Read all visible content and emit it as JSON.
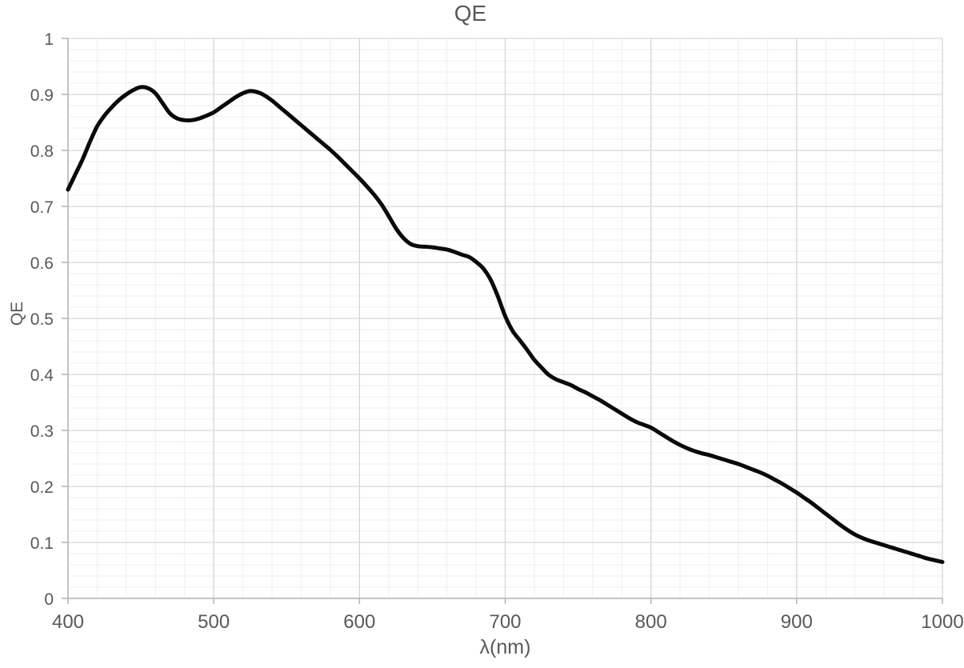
{
  "page": {
    "background": "#ffffff"
  },
  "colors": {
    "background": "#ffffff",
    "text": "#595959",
    "major_grid": "#d6d6d6",
    "minor_grid": "#efefef",
    "axis": "#b3b3b3",
    "line": "#0a0a0a"
  },
  "chart_data": {
    "type": "line",
    "title": "QE",
    "xlabel": "λ(nm)",
    "ylabel": "QE",
    "xlim": [
      400,
      1000
    ],
    "ylim": [
      0,
      1
    ],
    "x_ticks": {
      "values": [
        400,
        500,
        600,
        700,
        800,
        900,
        1000
      ],
      "labels": [
        "400",
        "500",
        "600",
        "700",
        "800",
        "900",
        "1000"
      ]
    },
    "y_ticks": {
      "values": [
        0,
        0.1,
        0.2,
        0.3,
        0.4,
        0.5,
        0.6,
        0.7,
        0.8,
        0.9,
        1
      ],
      "labels": [
        "0",
        "0.1",
        "0.2",
        "0.3",
        "0.4",
        "0.5",
        "0.6",
        "0.7",
        "0.8",
        "0.9",
        "1"
      ]
    },
    "x_minor_step": 20,
    "y_minor_step": 0.02,
    "grid": "major and minor gridlines, light gray, no legend",
    "legend": "none",
    "series": [
      {
        "name": "QE",
        "color": "#0a0a0a",
        "line_width": 5,
        "points": [
          [
            400,
            0.73
          ],
          [
            405,
            0.757
          ],
          [
            410,
            0.784
          ],
          [
            415,
            0.815
          ],
          [
            420,
            0.843
          ],
          [
            425,
            0.862
          ],
          [
            430,
            0.877
          ],
          [
            435,
            0.89
          ],
          [
            440,
            0.9
          ],
          [
            445,
            0.908
          ],
          [
            450,
            0.913
          ],
          [
            455,
            0.911
          ],
          [
            460,
            0.902
          ],
          [
            465,
            0.884
          ],
          [
            470,
            0.866
          ],
          [
            475,
            0.857
          ],
          [
            480,
            0.854
          ],
          [
            485,
            0.854
          ],
          [
            490,
            0.857
          ],
          [
            495,
            0.862
          ],
          [
            500,
            0.868
          ],
          [
            505,
            0.877
          ],
          [
            510,
            0.886
          ],
          [
            515,
            0.895
          ],
          [
            520,
            0.902
          ],
          [
            525,
            0.906
          ],
          [
            530,
            0.904
          ],
          [
            535,
            0.898
          ],
          [
            540,
            0.889
          ],
          [
            545,
            0.878
          ],
          [
            550,
            0.867
          ],
          [
            555,
            0.856
          ],
          [
            560,
            0.845
          ],
          [
            565,
            0.834
          ],
          [
            570,
            0.823
          ],
          [
            575,
            0.812
          ],
          [
            580,
            0.801
          ],
          [
            585,
            0.789
          ],
          [
            590,
            0.776
          ],
          [
            595,
            0.763
          ],
          [
            600,
            0.75
          ],
          [
            605,
            0.736
          ],
          [
            610,
            0.721
          ],
          [
            615,
            0.704
          ],
          [
            620,
            0.683
          ],
          [
            625,
            0.661
          ],
          [
            630,
            0.644
          ],
          [
            635,
            0.633
          ],
          [
            640,
            0.629
          ],
          [
            645,
            0.628
          ],
          [
            650,
            0.627
          ],
          [
            655,
            0.625
          ],
          [
            660,
            0.623
          ],
          [
            665,
            0.619
          ],
          [
            670,
            0.614
          ],
          [
            675,
            0.61
          ],
          [
            680,
            0.601
          ],
          [
            685,
            0.589
          ],
          [
            690,
            0.569
          ],
          [
            695,
            0.539
          ],
          [
            700,
            0.504
          ],
          [
            705,
            0.478
          ],
          [
            710,
            0.461
          ],
          [
            715,
            0.444
          ],
          [
            720,
            0.426
          ],
          [
            725,
            0.412
          ],
          [
            730,
            0.399
          ],
          [
            735,
            0.391
          ],
          [
            740,
            0.386
          ],
          [
            745,
            0.381
          ],
          [
            750,
            0.374
          ],
          [
            755,
            0.368
          ],
          [
            760,
            0.361
          ],
          [
            765,
            0.354
          ],
          [
            770,
            0.346
          ],
          [
            775,
            0.338
          ],
          [
            780,
            0.33
          ],
          [
            785,
            0.322
          ],
          [
            790,
            0.315
          ],
          [
            795,
            0.31
          ],
          [
            800,
            0.305
          ],
          [
            805,
            0.297
          ],
          [
            810,
            0.289
          ],
          [
            815,
            0.281
          ],
          [
            820,
            0.274
          ],
          [
            825,
            0.268
          ],
          [
            830,
            0.263
          ],
          [
            835,
            0.259
          ],
          [
            840,
            0.256
          ],
          [
            845,
            0.252
          ],
          [
            850,
            0.248
          ],
          [
            855,
            0.244
          ],
          [
            860,
            0.24
          ],
          [
            865,
            0.235
          ],
          [
            870,
            0.23
          ],
          [
            875,
            0.225
          ],
          [
            880,
            0.219
          ],
          [
            885,
            0.212
          ],
          [
            890,
            0.205
          ],
          [
            895,
            0.197
          ],
          [
            900,
            0.189
          ],
          [
            905,
            0.18
          ],
          [
            910,
            0.171
          ],
          [
            915,
            0.161
          ],
          [
            920,
            0.151
          ],
          [
            925,
            0.141
          ],
          [
            930,
            0.131
          ],
          [
            935,
            0.122
          ],
          [
            940,
            0.114
          ],
          [
            945,
            0.108
          ],
          [
            950,
            0.103
          ],
          [
            955,
            0.099
          ],
          [
            960,
            0.095
          ],
          [
            965,
            0.091
          ],
          [
            970,
            0.087
          ],
          [
            975,
            0.083
          ],
          [
            980,
            0.079
          ],
          [
            985,
            0.075
          ],
          [
            990,
            0.071
          ],
          [
            995,
            0.068
          ],
          [
            1000,
            0.065
          ]
        ]
      }
    ]
  }
}
